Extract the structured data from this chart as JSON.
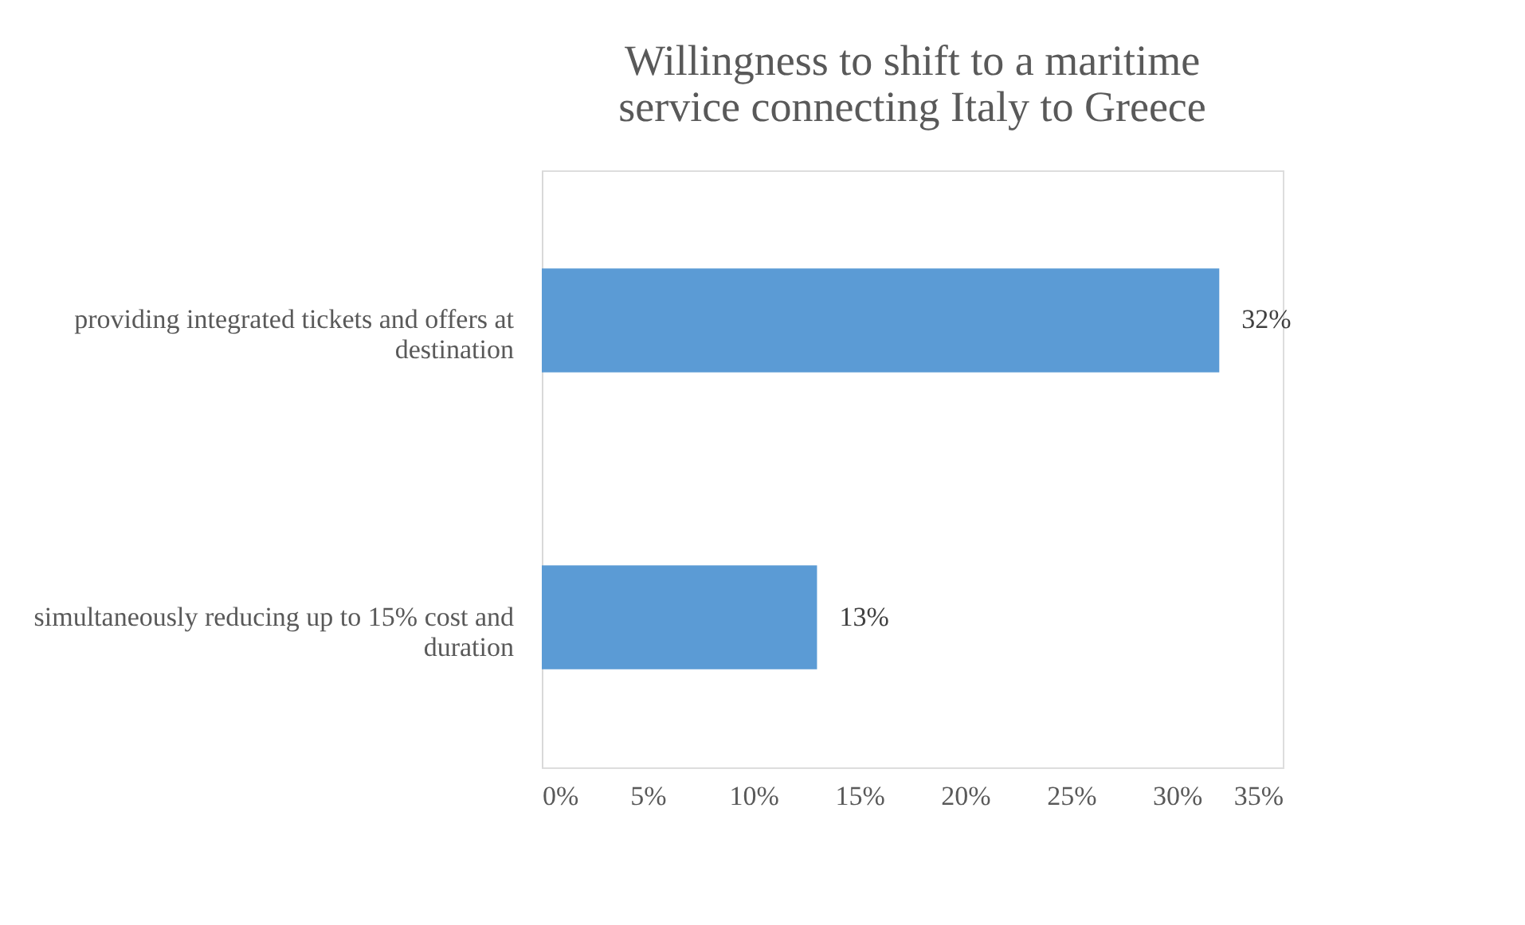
{
  "chart_data": {
    "type": "bar",
    "orientation": "horizontal",
    "title": "Willingness to shift to a maritime service connecting Italy to Greece",
    "categories": [
      "providing integrated tickets and offers at destination",
      "simultaneously reducing up to 15% cost and duration"
    ],
    "values": [
      32,
      13
    ],
    "color": "#5b9bd5",
    "value_labels": [
      "32%",
      "13%"
    ],
    "xlim": [
      0,
      35
    ],
    "xticks": [
      {
        "value": 0,
        "label": "0%"
      },
      {
        "value": 5,
        "label": "5%"
      },
      {
        "value": 10,
        "label": "10%"
      },
      {
        "value": 15,
        "label": "15%"
      },
      {
        "value": 20,
        "label": "20%"
      },
      {
        "value": 25,
        "label": "25%"
      },
      {
        "value": 30,
        "label": "30%"
      },
      {
        "value": 35,
        "label": "35%"
      }
    ],
    "grid": false
  }
}
